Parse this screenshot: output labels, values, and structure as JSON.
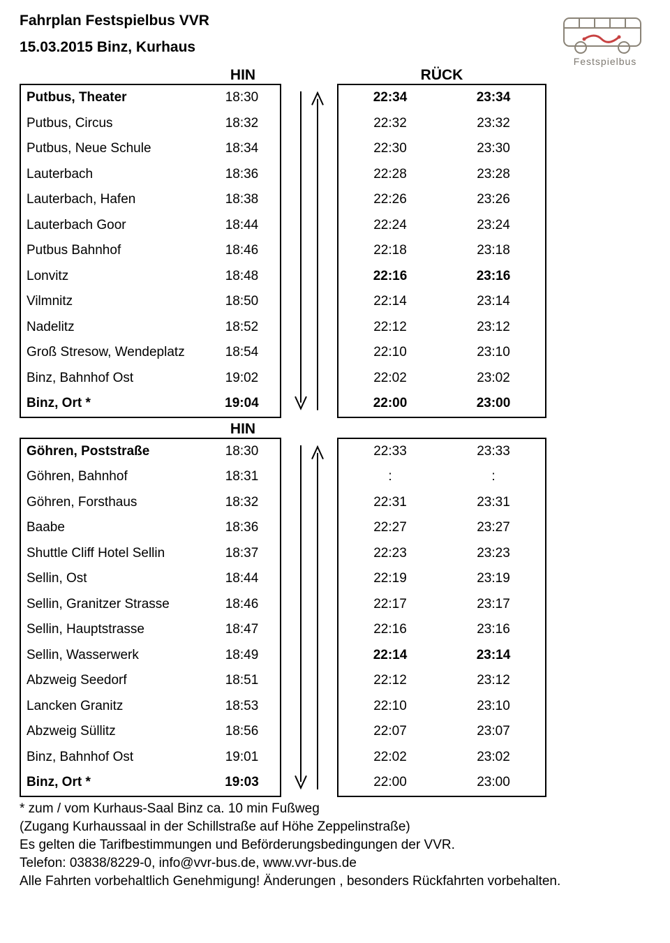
{
  "header": {
    "title": "Fahrplan Festspielbus VVR",
    "subtitle": "15.03.2015 Binz, Kurhaus",
    "logo_label": "Festspielbus"
  },
  "directions": {
    "hin": "HIN",
    "ruck": "RÜCK",
    "hin2": "HIN"
  },
  "table1": {
    "rows": [
      {
        "stop": "Putbus, Theater",
        "hin": "18:30",
        "r1": "22:34",
        "r2": "23:34",
        "bold_stop": true,
        "bold_r": true
      },
      {
        "stop": "Putbus, Circus",
        "hin": "18:32",
        "r1": "22:32",
        "r2": "23:32"
      },
      {
        "stop": "Putbus, Neue Schule",
        "hin": "18:34",
        "r1": "22:30",
        "r2": "23:30"
      },
      {
        "stop": "Lauterbach",
        "hin": "18:36",
        "r1": "22:28",
        "r2": "23:28"
      },
      {
        "stop": "Lauterbach, Hafen",
        "hin": "18:38",
        "r1": "22:26",
        "r2": "23:26"
      },
      {
        "stop": "Lauterbach Goor",
        "hin": "18:44",
        "r1": "22:24",
        "r2": "23:24"
      },
      {
        "stop": "Putbus Bahnhof",
        "hin": "18:46",
        "r1": "22:18",
        "r2": "23:18"
      },
      {
        "stop": "Lonvitz",
        "hin": "18:48",
        "r1": "22:16",
        "r2": "23:16",
        "bold_r": true
      },
      {
        "stop": "Vilmnitz",
        "hin": "18:50",
        "r1": "22:14",
        "r2": "23:14"
      },
      {
        "stop": "Nadelitz",
        "hin": "18:52",
        "r1": "22:12",
        "r2": "23:12"
      },
      {
        "stop": "Groß Stresow, Wendeplatz",
        "hin": "18:54",
        "r1": "22:10",
        "r2": "23:10"
      },
      {
        "stop": "Binz, Bahnhof Ost",
        "hin": "19:02",
        "r1": "22:02",
        "r2": "23:02"
      },
      {
        "stop": "Binz, Ort *",
        "hin": "19:04",
        "r1": "22:00",
        "r2": "23:00",
        "bold_stop": true,
        "bold_hin": true,
        "bold_r": true
      }
    ]
  },
  "table2": {
    "rows": [
      {
        "stop": "Göhren, Poststraße",
        "hin": "18:30",
        "r1": "22:33",
        "r2": "23:33",
        "bold_stop": true
      },
      {
        "stop": "Göhren, Bahnhof",
        "hin": "18:31",
        "r1": ":",
        "r2": ":"
      },
      {
        "stop": "Göhren, Forsthaus",
        "hin": "18:32",
        "r1": "22:31",
        "r2": "23:31"
      },
      {
        "stop": "Baabe",
        "hin": "18:36",
        "r1": "22:27",
        "r2": "23:27"
      },
      {
        "stop": "Shuttle Cliff Hotel Sellin",
        "hin": "18:37",
        "r1": "22:23",
        "r2": "23:23"
      },
      {
        "stop": "Sellin, Ost",
        "hin": "18:44",
        "r1": "22:19",
        "r2": "23:19"
      },
      {
        "stop": "Sellin, Granitzer Strasse",
        "hin": "18:46",
        "r1": "22:17",
        "r2": "23:17"
      },
      {
        "stop": "Sellin, Hauptstrasse",
        "hin": "18:47",
        "r1": "22:16",
        "r2": "23:16"
      },
      {
        "stop": "Sellin, Wasserwerk",
        "hin": "18:49",
        "r1": "22:14",
        "r2": "23:14",
        "bold_r": true
      },
      {
        "stop": "Abzweig Seedorf",
        "hin": "18:51",
        "r1": "22:12",
        "r2": "23:12"
      },
      {
        "stop": "Lancken Granitz",
        "hin": "18:53",
        "r1": "22:10",
        "r2": "23:10"
      },
      {
        "stop": "Abzweig Süllitz",
        "hin": "18:56",
        "r1": "22:07",
        "r2": "23:07"
      },
      {
        "stop": "Binz, Bahnhof Ost",
        "hin": "19:01",
        "r1": "22:02",
        "r2": "23:02"
      },
      {
        "stop": "Binz, Ort *",
        "hin": "19:03",
        "r1": "22:00",
        "r2": "23:00",
        "bold_stop": true,
        "bold_hin": true
      }
    ]
  },
  "footer": {
    "note1": "* zum / vom  Kurhaus-Saal Binz ca. 10 min Fußweg",
    "note2": "(Zugang Kurhaussaal in der Schillstraße auf Höhe Zeppelinstraße)",
    "note3": "Es gelten die Tarifbestimmungen und Beförderungsbedingungen der VVR.",
    "note4": "Telefon: 03838/8229-0, info@vvr-bus.de, www.vvr-bus.de",
    "note5": "Alle Fahrten vorbehaltlich Genehmigung! Änderungen , besonders Rückfahrten vorbehalten."
  },
  "style": {
    "border_color": "#000000",
    "arrow_color": "#000000",
    "logo_bus_color": "#8a8377",
    "logo_wave_color": "#c74242"
  }
}
